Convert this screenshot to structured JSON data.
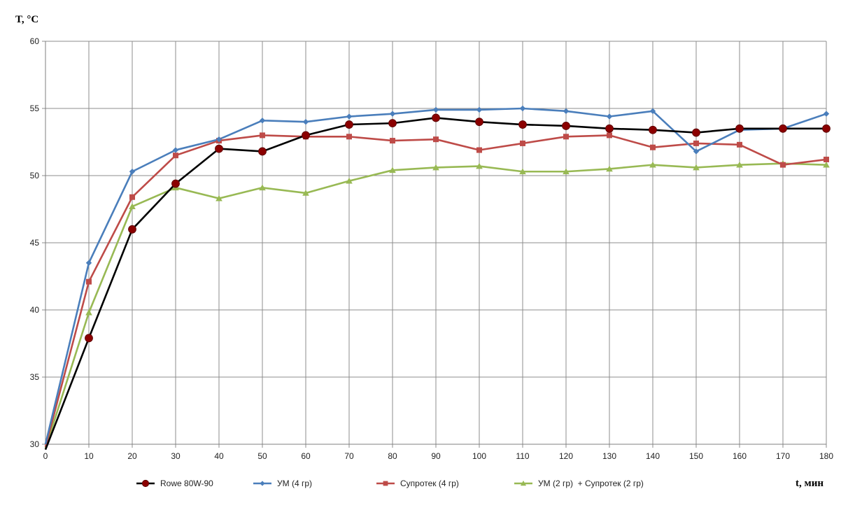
{
  "chart_data": {
    "type": "line",
    "title": "",
    "ylabel": "T, °C",
    "xlabel": "t, мин",
    "xlim": [
      0,
      180
    ],
    "ylim": [
      30,
      60
    ],
    "xticks": [
      0,
      10,
      20,
      30,
      40,
      50,
      60,
      70,
      80,
      90,
      100,
      110,
      120,
      130,
      140,
      150,
      160,
      170,
      180
    ],
    "yticks": [
      30,
      35,
      40,
      45,
      50,
      55,
      60
    ],
    "grid": true,
    "legend_position": "bottom",
    "x": [
      0,
      10,
      20,
      30,
      40,
      50,
      60,
      70,
      80,
      90,
      100,
      110,
      120,
      130,
      140,
      150,
      160,
      170,
      180
    ],
    "series": [
      {
        "name": "Rowe 80W-90",
        "color": "#000000",
        "marker": "circle",
        "marker_color": "#8b0000",
        "values": [
          29.6,
          37.9,
          46.0,
          49.4,
          52.0,
          51.8,
          53.0,
          53.8,
          53.9,
          54.3,
          54.0,
          53.8,
          53.7,
          53.5,
          53.4,
          53.2,
          53.5,
          53.5,
          53.5
        ]
      },
      {
        "name": "УМ (4 гр)",
        "color": "#4a7ebb",
        "marker": "diamond",
        "marker_color": "#4a7ebb",
        "values": [
          30.0,
          43.5,
          50.3,
          51.9,
          52.7,
          54.1,
          54.0,
          54.4,
          54.6,
          54.9,
          54.9,
          55.0,
          54.8,
          54.4,
          54.8,
          51.8,
          53.4,
          53.5,
          54.6
        ]
      },
      {
        "name": "Супротек (4 гр)",
        "color": "#be4b48",
        "marker": "square",
        "marker_color": "#be4b48",
        "values": [
          29.8,
          42.1,
          48.4,
          51.5,
          52.6,
          53.0,
          52.9,
          52.9,
          52.6,
          52.7,
          51.9,
          52.4,
          52.9,
          53.0,
          52.1,
          52.4,
          52.3,
          50.8,
          51.2
        ]
      },
      {
        "name": "УМ (2 гр)  + Супротек (2 гр)",
        "color": "#98b954",
        "marker": "triangle",
        "marker_color": "#98b954",
        "values": [
          29.7,
          39.8,
          47.7,
          49.1,
          48.3,
          49.1,
          48.7,
          49.6,
          50.4,
          50.6,
          50.7,
          50.3,
          50.3,
          50.5,
          50.8,
          50.6,
          50.8,
          50.9,
          50.8
        ]
      }
    ]
  }
}
